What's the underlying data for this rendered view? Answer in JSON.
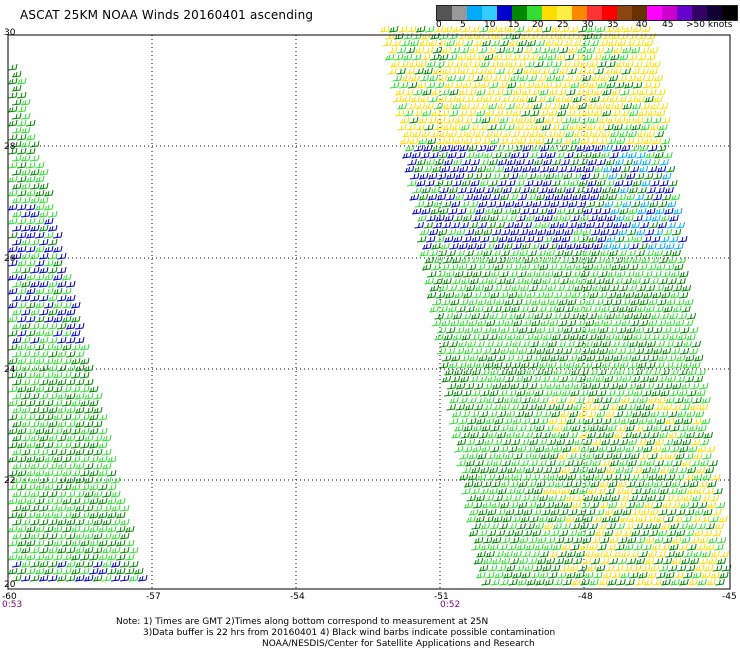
{
  "header": {
    "title": "ASCAT 25KM NOAA Winds 20160401 ascending"
  },
  "legend": {
    "labels": [
      "0",
      "5",
      "10",
      "15",
      "20",
      "25",
      "30",
      "35",
      "40",
      "45",
      ">50 knots"
    ],
    "colors": [
      "#555555",
      "#999999",
      "#00aaff",
      "#33ccff",
      "#0000cc",
      "#008800",
      "#33dd33",
      "#ffdd00",
      "#ffee44",
      "#ff8800",
      "#ff3333",
      "#ff0000",
      "#8b4513",
      "#663300",
      "#ff00ff",
      "#cc00cc",
      "#6600cc",
      "#330066",
      "#110033",
      "#000000"
    ]
  },
  "map": {
    "lat_labels": [
      "30",
      "28",
      "26",
      "24",
      "22",
      "20"
    ],
    "lon_labels": [
      "-60",
      "-57",
      "-54",
      "-51",
      "-48",
      "-45"
    ],
    "passes": [
      {
        "time_label": "0:53"
      },
      {
        "time_label": "0:52"
      }
    ]
  },
  "footer": {
    "note_line1": "Note: 1) Times are GMT 2)Times along bottom correspond to measurement at 25N",
    "note_line2": "3)Data buffer is 22 hrs from 20160401 4) Black wind barbs indicate possible contamination",
    "note_line3": "NOAA/NESDIS/Center for Satellite Applications and Research"
  }
}
